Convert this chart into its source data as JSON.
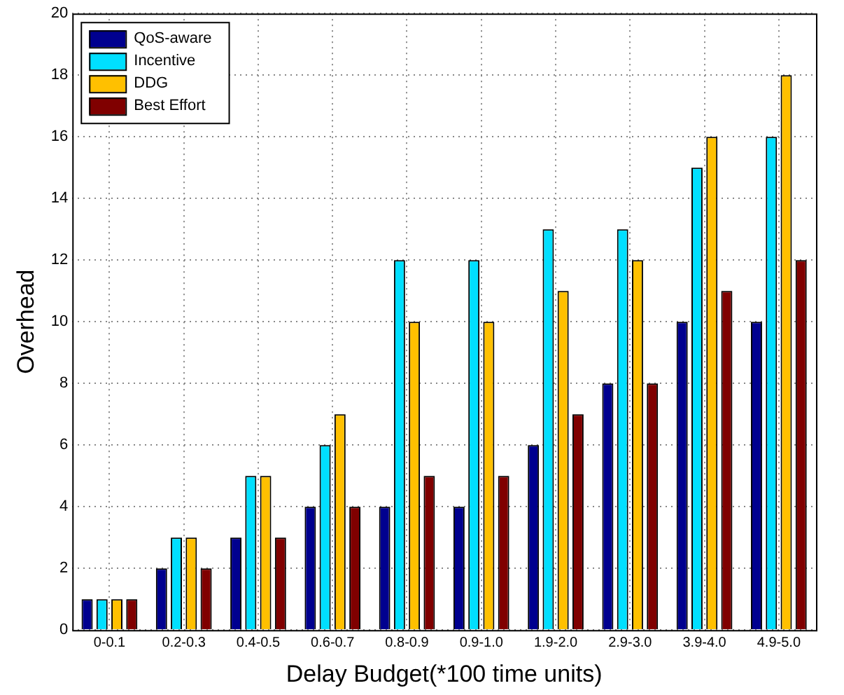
{
  "chart_data": {
    "type": "bar",
    "xlabel": "Delay Budget(*100 time units)",
    "ylabel": "Overhead",
    "categories": [
      "0-0.1",
      "0.2-0.3",
      "0.4-0.5",
      "0.6-0.7",
      "0.8-0.9",
      "0.9-1.0",
      "1.9-2.0",
      "2.9-3.0",
      "3.9-4.0",
      "4.9-5.0"
    ],
    "series": [
      {
        "name": "QoS-aware",
        "color": "#00008f",
        "values": [
          1,
          2,
          3,
          4,
          4,
          4,
          6,
          8,
          10,
          10
        ]
      },
      {
        "name": "Incentive",
        "color": "#00dfff",
        "values": [
          1,
          3,
          5,
          6,
          12,
          12,
          13,
          13,
          15,
          16
        ]
      },
      {
        "name": "DDG",
        "color": "#ffc000",
        "values": [
          1,
          3,
          5,
          7,
          10,
          10,
          11,
          12,
          16,
          18
        ]
      },
      {
        "name": "Best Effort",
        "color": "#800000",
        "values": [
          1,
          2,
          3,
          4,
          5,
          5,
          7,
          8,
          11,
          12
        ]
      }
    ],
    "ylim": [
      0,
      20
    ],
    "yticks": [
      0,
      2,
      4,
      6,
      8,
      10,
      12,
      14,
      16,
      18,
      20
    ],
    "grid": true,
    "legend": "top left"
  }
}
